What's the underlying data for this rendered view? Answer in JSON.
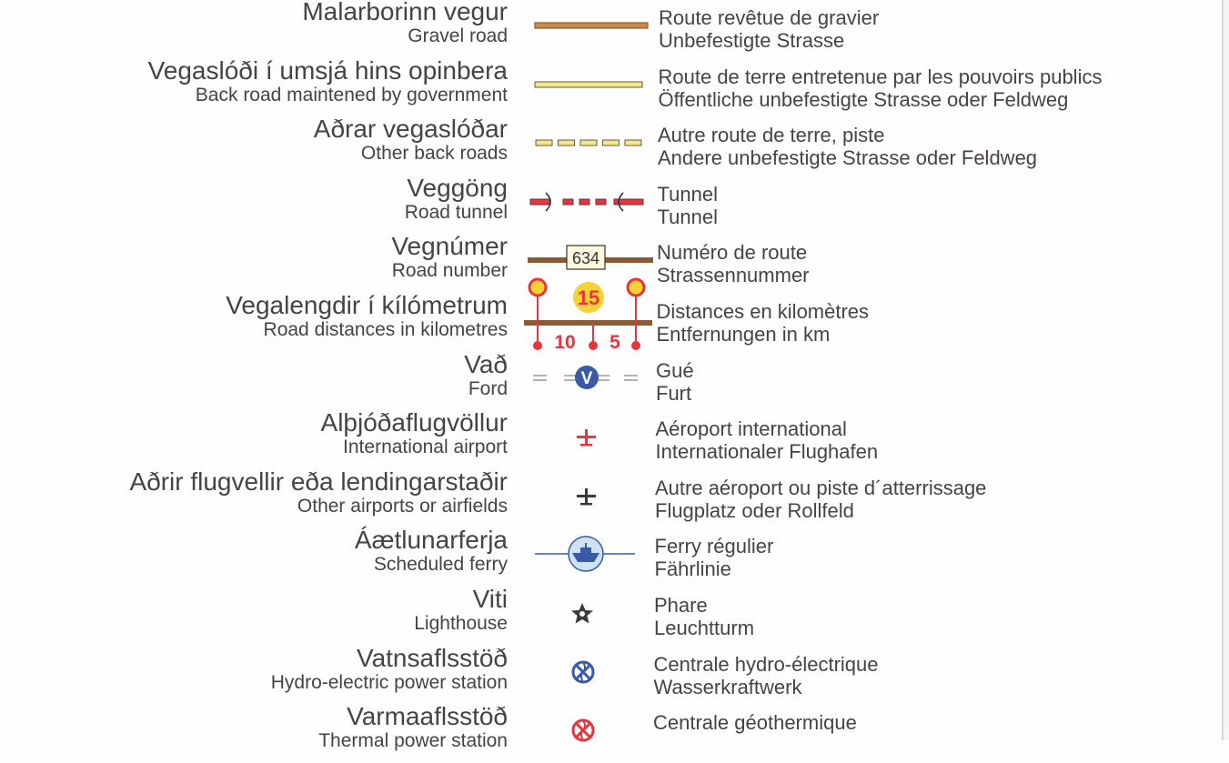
{
  "legend": [
    {
      "is": "Malarborinn vegur",
      "en": "Gravel road",
      "fr": "Route revêtue de gravier",
      "de": "Unbefestigte Strasse",
      "icon": "gravel-road-line"
    },
    {
      "is": "Vegaslóði í umsjá hins opinbera",
      "en": "Back road maintened by government",
      "fr": "Route de terre entretenue par les pouvoirs publics",
      "de": "Öffentliche unbefestigte Strasse oder Feldweg",
      "icon": "government-back-road-line"
    },
    {
      "is": "Aðrar vegaslóðar",
      "en": "Other back roads",
      "fr": "Autre route de terre, piste",
      "de": "Andere unbefestigte Strasse oder Feldweg",
      "icon": "other-back-road-dashed-line"
    },
    {
      "is": "Veggöng",
      "en": "Road tunnel",
      "fr": "Tunnel",
      "de": "Tunnel",
      "icon": "tunnel-line"
    },
    {
      "is": "Vegnúmer",
      "en": "Road number",
      "fr": "Numéro de route",
      "de": "Strassennummer",
      "icon": "road-number-box",
      "sample": "634"
    },
    {
      "is": "Vegalengdir í kílómetrum",
      "en": "Road distances in kilometres",
      "fr": "Distances en kilomètres",
      "de": "Entfernungen in km",
      "icon": "distance-markers",
      "sample_total": "15",
      "sample_a": "10",
      "sample_b": "5"
    },
    {
      "is": "Vað",
      "en": "Ford",
      "fr": "Gué",
      "de": "Furt",
      "icon": "ford-icon",
      "sample": "V"
    },
    {
      "is": "Alþjóðaflugvöllur",
      "en": "International airport",
      "fr": "Aéroport international",
      "de": "Internationaler Flughafen",
      "icon": "international-airport-icon"
    },
    {
      "is": "Aðrir flugvellir eða lendingarstaðir",
      "en": "Other airports or airfields",
      "fr": "Autre aéroport ou piste d´atterrissage",
      "de": "Flugplatz oder Rollfeld",
      "icon": "airfield-icon"
    },
    {
      "is": "Áætlunarferja",
      "en": "Scheduled ferry",
      "fr": "Ferry régulier",
      "de": "Fährlinie",
      "icon": "ferry-icon"
    },
    {
      "is": "Viti",
      "en": "Lighthouse",
      "fr": "Phare",
      "de": "Leuchtturm",
      "icon": "lighthouse-star-icon"
    },
    {
      "is": "Vatnsaflsstöð",
      "en": "Hydro-electric power station",
      "fr": "Centrale hydro-électrique",
      "de": "Wasserkraftwerk",
      "icon": "hydro-power-icon"
    },
    {
      "is": "Varmaaflsstöð",
      "en": "Thermal power station",
      "fr": "Centrale géothermique",
      "de": "",
      "icon": "thermal-power-icon"
    }
  ],
  "colors": {
    "text": "#474343",
    "brown": "#8a5a34",
    "gravel": "#c98a48",
    "yellow": "#f2e58c",
    "red": "#e8343c",
    "blue": "#3a5aa8",
    "light_blue": "#cfe3f6",
    "marker_yellow": "#f5d235"
  }
}
